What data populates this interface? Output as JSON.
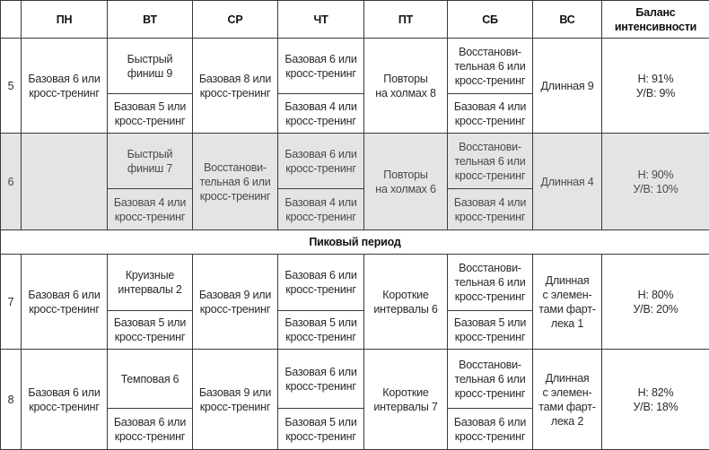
{
  "headers": [
    "",
    "ПН",
    "ВТ",
    "СР",
    "ЧТ",
    "ПТ",
    "СБ",
    "ВС",
    "Баланс\nинтенсивности"
  ],
  "weeks": [
    {
      "week": "5",
      "shaded": false,
      "days": [
        {
          "text": "Базовая 6 или\nкросс-тренинг"
        },
        {
          "top": "Быстрый\nфиниш 9",
          "bottom": "Базовая 5 или\nкросс-тренинг"
        },
        {
          "text": "Базовая 8 или\nкросс-тренинг"
        },
        {
          "top": "Базовая 6 или\nкросс-тренинг",
          "bottom": "Базовая 4 или\nкросс-тренинг"
        },
        {
          "text": "Повторы\nна холмах 8"
        },
        {
          "top": "Восстанови-\nтельная 6 или\nкросс-тренинг",
          "bottom": "Базовая 4 или\nкросс-тренинг"
        },
        {
          "text": "Длинная 9"
        },
        {
          "text": "Н: 91%\nУ/В: 9%"
        }
      ]
    },
    {
      "week": "6",
      "shaded": true,
      "days": [
        {
          "text": ""
        },
        {
          "top": "Быстрый\nфиниш 7",
          "bottom": "Базовая 4 или\nкросс-тренинг"
        },
        {
          "text": "Восстанови-\nтельная 6 или\nкросс-тренинг"
        },
        {
          "top": "Базовая 6 или\nкросс-тренинг",
          "bottom": "Базовая 4 или\nкросс-тренинг"
        },
        {
          "text": "Повторы\nна холмах 6"
        },
        {
          "top": "Восстанови-\nтельная 6 или\nкросс-тренинг",
          "bottom": "Базовая 4 или\nкросс-тренинг"
        },
        {
          "text": "Длинная 4"
        },
        {
          "text": "Н: 90%\nУ/В: 10%"
        }
      ]
    },
    {
      "section": "Пиковый период"
    },
    {
      "week": "7",
      "shaded": false,
      "days": [
        {
          "text": "Базовая 6 или\nкросс-тренинг"
        },
        {
          "top": "Круизные\nинтервалы 2",
          "bottom": "Базовая 5 или\nкросс-тренинг"
        },
        {
          "text": "Базовая 9 или\nкросс-тренинг"
        },
        {
          "top": "Базовая 6 или\nкросс-тренинг",
          "bottom": "Базовая 5 или\nкросс-тренинг"
        },
        {
          "text": "Короткие\nинтервалы 6"
        },
        {
          "top": "Восстанови-\nтельная 6 или\nкросс-тренинг",
          "bottom": "Базовая 5 или\nкросс-тренинг"
        },
        {
          "text": "Длинная\nс элемен-\nтами фарт-\nлека 1"
        },
        {
          "text": "Н: 80%\nУ/В: 20%"
        }
      ]
    },
    {
      "week": "8",
      "shaded": false,
      "days": [
        {
          "text": "Базовая 6 или\nкросс-тренинг"
        },
        {
          "top": "Темповая 6",
          "bottom": "Базовая 6 или\nкросс-тренинг"
        },
        {
          "text": "Базовая 9 или\nкросс-тренинг"
        },
        {
          "top": "Базовая 6 или\nкросс-тренинг",
          "bottom": "Базовая 5 или\nкросс-тренинг"
        },
        {
          "text": "Короткие\nинтервалы 7"
        },
        {
          "top": "Восстанови-\nтельная 6 или\nкросс-тренинг",
          "bottom": "Базовая 6 или\nкросс-тренинг"
        },
        {
          "text": "Длинная\nс элемен-\nтами фарт-\nлека 2"
        },
        {
          "text": "Н: 82%\nУ/В: 18%"
        }
      ]
    }
  ]
}
